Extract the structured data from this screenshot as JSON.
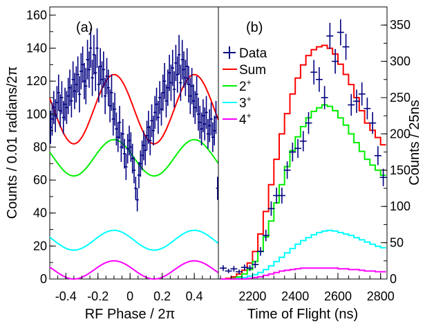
{
  "chart_data": [
    {
      "panel_label": "(a)",
      "type": "line",
      "xlabel": "RF Phase / 2π",
      "ylabel": "Counts / 0.01 radians/2π",
      "xlim": [
        -0.5,
        0.55
      ],
      "ylim": [
        0,
        165
      ],
      "xticks": [
        -0.4,
        -0.2,
        0,
        0.2,
        0.4
      ],
      "xtick_labels": [
        "-0.4",
        "-0.2",
        "0",
        "0.2",
        "0.4"
      ],
      "yticks": [
        0,
        20,
        40,
        60,
        80,
        100,
        120,
        140,
        160
      ],
      "ytick_labels": [
        "0",
        "20",
        "40",
        "60",
        "80",
        "100",
        "120",
        "140",
        "160"
      ],
      "data": {
        "name": "Data",
        "color": "#000080",
        "x": [
          -0.495,
          -0.485,
          -0.475,
          -0.465,
          -0.455,
          -0.445,
          -0.435,
          -0.425,
          -0.415,
          -0.405,
          -0.395,
          -0.385,
          -0.375,
          -0.365,
          -0.355,
          -0.345,
          -0.335,
          -0.325,
          -0.315,
          -0.305,
          -0.295,
          -0.285,
          -0.275,
          -0.265,
          -0.255,
          -0.245,
          -0.235,
          -0.225,
          -0.215,
          -0.205,
          -0.195,
          -0.185,
          -0.175,
          -0.165,
          -0.155,
          -0.145,
          -0.135,
          -0.125,
          -0.115,
          -0.105,
          -0.095,
          -0.085,
          -0.075,
          -0.065,
          -0.055,
          -0.045,
          -0.035,
          -0.025,
          -0.015,
          -0.005,
          0.005,
          0.015,
          0.025,
          0.035,
          0.045,
          0.055,
          0.065,
          0.075,
          0.085,
          0.095,
          0.105,
          0.115,
          0.125,
          0.135,
          0.145,
          0.155,
          0.165,
          0.175,
          0.185,
          0.195,
          0.205,
          0.215,
          0.225,
          0.235,
          0.245,
          0.255,
          0.265,
          0.275,
          0.285,
          0.295,
          0.305,
          0.315,
          0.325,
          0.335,
          0.345,
          0.355,
          0.365,
          0.375,
          0.385,
          0.395,
          0.405,
          0.415,
          0.425,
          0.435,
          0.445,
          0.455,
          0.465,
          0.475,
          0.485,
          0.495,
          0.505,
          0.515,
          0.525,
          0.535,
          0.545
        ],
        "y": [
          92,
          97,
          104,
          99,
          107,
          113,
          102,
          110,
          98,
          106,
          104,
          111,
          116,
          108,
          121,
          114,
          118,
          124,
          112,
          126,
          130,
          120,
          117,
          133,
          127,
          140,
          122,
          136,
          125,
          140,
          118,
          129,
          121,
          127,
          111,
          123,
          116,
          105,
          113,
          97,
          103,
          91,
          86,
          95,
          80,
          88,
          76,
          68,
          79,
          84,
          80,
          73,
          66,
          55,
          48,
          63,
          70,
          75,
          81,
          78,
          87,
          92,
          84,
          96,
          90,
          101,
          106,
          98,
          110,
          103,
          113,
          120,
          108,
          116,
          125,
          119,
          128,
          115,
          131,
          124,
          136,
          119,
          133,
          127,
          122,
          129,
          118,
          111,
          117,
          108,
          104,
          112,
          100,
          95,
          91,
          99,
          94,
          101,
          88,
          93,
          97,
          86,
          90,
          98,
          55
        ],
        "err": [
          10,
          10,
          10,
          10,
          10,
          11,
          10,
          10,
          10,
          10,
          10,
          11,
          11,
          10,
          11,
          11,
          11,
          11,
          11,
          11,
          11,
          11,
          11,
          12,
          11,
          12,
          11,
          12,
          11,
          12,
          11,
          11,
          11,
          11,
          11,
          11,
          11,
          10,
          11,
          10,
          10,
          10,
          9,
          10,
          9,
          9,
          9,
          8,
          9,
          9,
          9,
          9,
          8,
          7,
          7,
          8,
          8,
          9,
          9,
          9,
          9,
          10,
          9,
          10,
          9,
          10,
          10,
          10,
          10,
          10,
          11,
          11,
          10,
          11,
          11,
          11,
          11,
          11,
          11,
          11,
          12,
          11,
          12,
          11,
          11,
          11,
          11,
          11,
          11,
          10,
          10,
          11,
          10,
          10,
          10,
          10,
          10,
          10,
          9,
          10,
          10,
          9,
          9,
          10,
          7
        ]
      },
      "curves": [
        {
          "name": "Sum",
          "color": "#ff0000",
          "base": 103,
          "amp": 21,
          "phase": 0.05,
          "freq": 2
        },
        {
          "name": "2+",
          "color": "#00ee00",
          "base": 73.5,
          "amp": 11,
          "phase": 0.05,
          "freq": 2
        },
        {
          "name": "3+",
          "color": "#00ffff",
          "base": 23.5,
          "amp": 6,
          "phase": 0.05,
          "freq": 2
        },
        {
          "name": "4+",
          "color": "#ff00ff",
          "base": 5.5,
          "amp": 5.5,
          "phase": 0.05,
          "freq": 2
        }
      ]
    },
    {
      "panel_label": "(b)",
      "type": "line",
      "xlabel": "Time of Flight (ns)",
      "ylabel": "Counts / 25ns",
      "xlim": [
        2040,
        2830
      ],
      "ylim": [
        0,
        375
      ],
      "xticks": [
        2200,
        2400,
        2600,
        2800
      ],
      "xtick_labels": [
        "2200",
        "2400",
        "2600",
        "2800"
      ],
      "yticks": [
        0,
        50,
        100,
        150,
        200,
        250,
        300,
        350
      ],
      "ytick_labels": [
        "0",
        "50",
        "100",
        "150",
        "200",
        "250",
        "300",
        "350"
      ],
      "legend": {
        "position": "top-left",
        "entries": [
          {
            "label": "Data",
            "color": "#000080",
            "marker": "cross"
          },
          {
            "label": "Sum",
            "color": "#ff0000",
            "marker": "line"
          },
          {
            "label": "2",
            "sup": "+",
            "color": "#00ee00",
            "marker": "line"
          },
          {
            "label": "3",
            "sup": "+",
            "color": "#00ffff",
            "marker": "line"
          },
          {
            "label": "4",
            "sup": "+",
            "color": "#ff00ff",
            "marker": "line"
          }
        ]
      },
      "data": {
        "name": "Data",
        "color": "#000080",
        "x": [
          2062.5,
          2087.5,
          2112.5,
          2137.5,
          2162.5,
          2187.5,
          2212.5,
          2237.5,
          2262.5,
          2287.5,
          2312.5,
          2337.5,
          2362.5,
          2387.5,
          2412.5,
          2437.5,
          2462.5,
          2487.5,
          2512.5,
          2537.5,
          2562.5,
          2587.5,
          2612.5,
          2637.5,
          2662.5,
          2687.5,
          2712.5,
          2737.5,
          2762.5,
          2787.5,
          2812.5,
          2837.5
        ],
        "y": [
          15,
          11,
          14,
          10,
          16,
          15,
          20,
          38,
          60,
          97,
          115,
          115,
          150,
          175,
          180,
          190,
          215,
          285,
          275,
          250,
          335,
          300,
          340,
          320,
          240,
          245,
          255,
          235,
          215,
          170,
          140,
          145
        ],
        "err": [
          4,
          3,
          4,
          3,
          4,
          4,
          5,
          6,
          8,
          10,
          11,
          11,
          12,
          13,
          13,
          14,
          15,
          17,
          17,
          16,
          18,
          17,
          18,
          18,
          15,
          16,
          16,
          15,
          15,
          13,
          12,
          12
        ]
      },
      "curves": [
        {
          "name": "Sum",
          "color": "#ff0000",
          "bin_edges_start": 2050,
          "bin_width": 25,
          "values": [
            0,
            1,
            3,
            7,
            12,
            22,
            38,
            62,
            93,
            130,
            165,
            200,
            228,
            255,
            277,
            295,
            308,
            316,
            320,
            322,
            318,
            310,
            296,
            282,
            268,
            250,
            232,
            215,
            205,
            195,
            185
          ]
        },
        {
          "name": "2+",
          "color": "#00ee00",
          "bin_edges_start": 2050,
          "bin_width": 25,
          "values": [
            0,
            0,
            1,
            3,
            7,
            13,
            24,
            38,
            58,
            80,
            105,
            130,
            155,
            177,
            196,
            210,
            222,
            231,
            236,
            240,
            238,
            232,
            222,
            212,
            200,
            188,
            176,
            165,
            157,
            150,
            143
          ]
        },
        {
          "name": "3+",
          "color": "#00ffff",
          "bin_edges_start": 2050,
          "bin_width": 25,
          "values": [
            0,
            0,
            0,
            1,
            2,
            4,
            6,
            9,
            13,
            18,
            24,
            30,
            36,
            42,
            48,
            53,
            57,
            61,
            64,
            66,
            67,
            66,
            64,
            62,
            60,
            57,
            54,
            51,
            48,
            45,
            43
          ]
        },
        {
          "name": "4+",
          "color": "#ff00ff",
          "bin_edges_start": 2050,
          "bin_width": 25,
          "values": [
            0,
            0,
            0,
            0,
            0,
            1,
            2,
            3,
            5,
            7,
            9,
            11,
            12,
            13,
            14,
            15,
            15,
            15,
            15,
            15,
            15,
            15,
            14,
            14,
            13,
            13,
            12,
            11,
            11,
            10,
            10
          ]
        }
      ]
    }
  ]
}
